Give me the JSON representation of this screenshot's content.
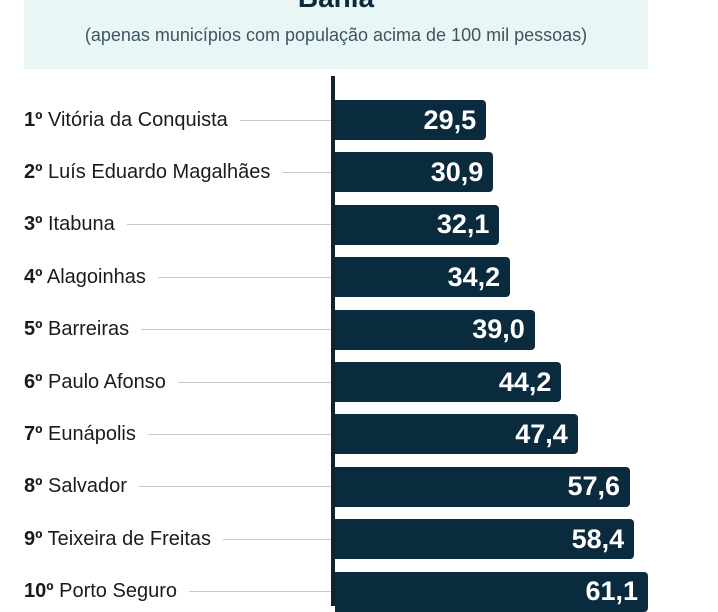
{
  "header": {
    "title": "Bahia",
    "subtitle": "(apenas municípios com população acima de 100 mil pessoas)"
  },
  "colors": {
    "bar": "#0a2a3d",
    "header_bg": "#e8f6f5"
  },
  "chart_data": {
    "type": "bar",
    "orientation": "horizontal",
    "title": "Bahia",
    "subtitle": "(apenas municípios com população acima de 100 mil pessoas)",
    "ranks": [
      "1º",
      "2º",
      "3º",
      "4º",
      "5º",
      "6º",
      "7º",
      "8º",
      "9º",
      "10º"
    ],
    "categories": [
      "Vitória da Conquista",
      "Luís Eduardo Magalhães",
      "Itabuna",
      "Alagoinhas",
      "Barreiras",
      "Paulo Afonso",
      "Eunápolis",
      "Salvador",
      "Teixeira de Freitas",
      "Porto Seguro"
    ],
    "values": [
      29.5,
      30.9,
      32.1,
      34.2,
      39.0,
      44.2,
      47.4,
      57.6,
      58.4,
      61.1
    ],
    "value_labels": [
      "29,5",
      "30,9",
      "32,1",
      "34,2",
      "39,0",
      "44,2",
      "47,4",
      "57,6",
      "58,4",
      "61,1"
    ],
    "xlim": [
      0,
      61.1
    ]
  }
}
